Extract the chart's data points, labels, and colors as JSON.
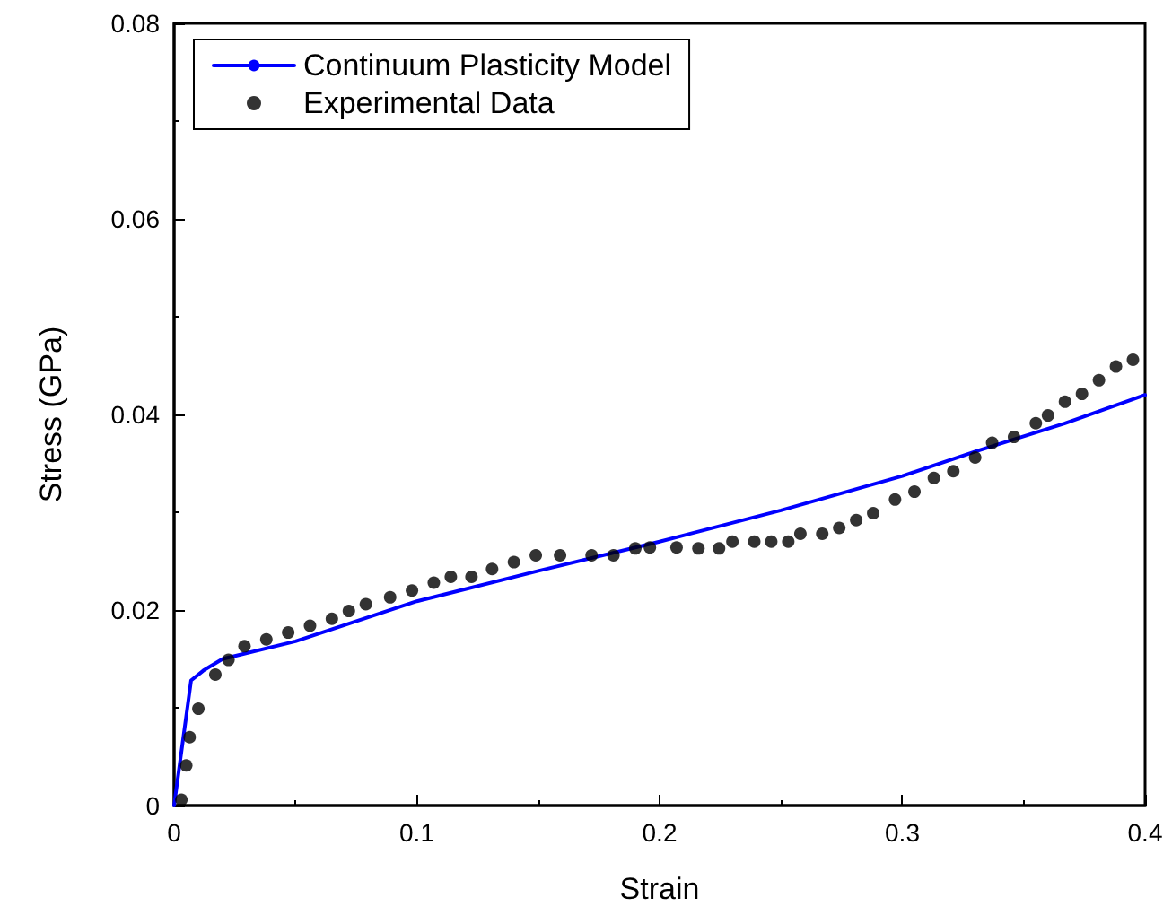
{
  "chart_data": {
    "type": "line",
    "xlabel": "Strain",
    "ylabel": "Stress (GPa)",
    "xlim": [
      0,
      0.4
    ],
    "xticks": [
      0,
      0.1,
      0.2,
      0.3,
      0.4
    ],
    "ylim": [
      0,
      0.08
    ],
    "yticks": [
      0,
      0.02,
      0.04,
      0.06,
      0.08
    ],
    "grid": false,
    "legend": "top left",
    "series": [
      {
        "name": "Continuum Plasticity Model",
        "color": "#0000ff",
        "marker": "none",
        "x": [
          0,
          0.007,
          0.012,
          0.02,
          0.05,
          0.1,
          0.15,
          0.2,
          0.25,
          0.3,
          0.33,
          0.367,
          0.4
        ],
        "values": [
          0,
          0.0128,
          0.0138,
          0.015,
          0.0168,
          0.0209,
          0.024,
          0.027,
          0.0302,
          0.0337,
          0.0362,
          0.0391,
          0.042
        ]
      },
      {
        "name": "Experimental Data",
        "type": "scatter",
        "color": "#000000",
        "marker": "circle",
        "x": [
          0.003,
          0.005,
          0.0064,
          0.01,
          0.017,
          0.0224,
          0.029,
          0.038,
          0.047,
          0.056,
          0.065,
          0.072,
          0.079,
          0.089,
          0.098,
          0.107,
          0.114,
          0.1225,
          0.131,
          0.14,
          0.149,
          0.159,
          0.172,
          0.181,
          0.19,
          0.196,
          0.207,
          0.216,
          0.2245,
          0.23,
          0.239,
          0.246,
          0.253,
          0.258,
          0.267,
          0.274,
          0.281,
          0.288,
          0.297,
          0.305,
          0.313,
          0.321,
          0.33,
          0.337,
          0.346,
          0.355,
          0.36,
          0.367,
          0.374,
          0.381,
          0.388,
          0.395
        ],
        "values": [
          0.0006,
          0.0041,
          0.007,
          0.0099,
          0.0134,
          0.0149,
          0.0163,
          0.017,
          0.0177,
          0.0184,
          0.0191,
          0.0199,
          0.0206,
          0.0213,
          0.022,
          0.0228,
          0.0234,
          0.0234,
          0.0242,
          0.0249,
          0.0256,
          0.0256,
          0.0256,
          0.0256,
          0.0263,
          0.0264,
          0.0264,
          0.0263,
          0.0263,
          0.027,
          0.027,
          0.027,
          0.027,
          0.0278,
          0.0278,
          0.0284,
          0.0292,
          0.0299,
          0.0313,
          0.0321,
          0.0335,
          0.0342,
          0.0356,
          0.0371,
          0.0377,
          0.0391,
          0.0399,
          0.0413,
          0.0421,
          0.0435,
          0.0449,
          0.0456
        ]
      }
    ]
  }
}
